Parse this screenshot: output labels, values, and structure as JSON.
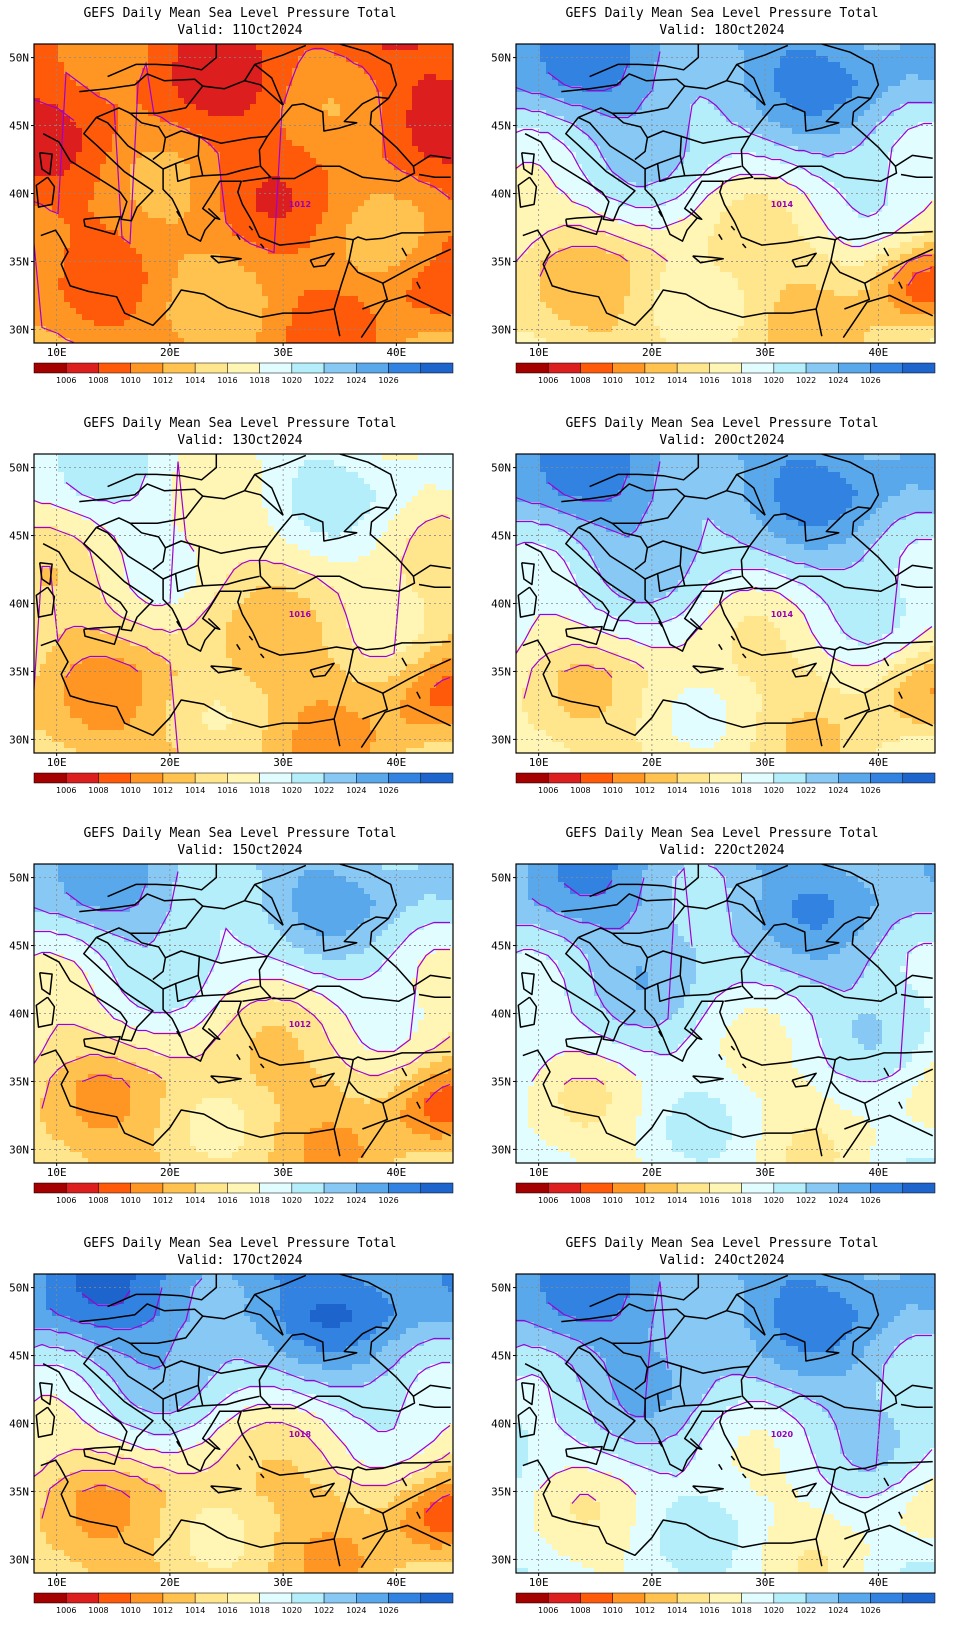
{
  "figure": {
    "title": "GEFS Daily Mean Sea Level Pressure Total",
    "valid_prefix": "Valid:",
    "colorbar_levels": [
      "1006",
      "1008",
      "1010",
      "1012",
      "1014",
      "1016",
      "1018",
      "1020",
      "1022",
      "1024",
      "1026"
    ],
    "colorbar_colors": [
      "#a50000",
      "#dc1e1e",
      "#ff5a0a",
      "#ff9623",
      "#ffc24f",
      "#ffe58c",
      "#fff5b4",
      "#e1fdff",
      "#b4eefa",
      "#87c8f5",
      "#5aa8ec",
      "#3282e1",
      "#1e64cd"
    ],
    "contour_color": "#a000d2",
    "coast_color": "#000000",
    "grid_color": "#8a8a8a",
    "lon_labels": [
      "10E",
      "20E",
      "30E",
      "40E"
    ],
    "lat_labels": [
      "50N",
      "45N",
      "40N",
      "35N",
      "30N"
    ],
    "panels": [
      {
        "name": "panel-11oct",
        "date": "11Oct2024",
        "label": "1012",
        "n_lvl": 2.0,
        "s_lvl": 3.1,
        "e_boost": 1.5
      },
      {
        "name": "panel-18oct",
        "date": "18Oct2024",
        "label": "1014",
        "n_lvl": 10.0,
        "s_lvl": 5.0,
        "e_boost": 3.0
      },
      {
        "name": "panel-13oct",
        "date": "13Oct2024",
        "label": "1016",
        "n_lvl": 7.0,
        "s_lvl": 4.2,
        "e_boost": 2.0
      },
      {
        "name": "panel-20oct",
        "date": "20Oct2024",
        "label": "1014",
        "n_lvl": 10.0,
        "s_lvl": 5.5,
        "e_boost": 2.0
      },
      {
        "name": "panel-15oct",
        "date": "15Oct2024",
        "label": "1012",
        "n_lvl": 9.0,
        "s_lvl": 4.5,
        "e_boost": 2.5
      },
      {
        "name": "panel-22oct",
        "date": "22Oct2024",
        "label": "",
        "n_lvl": 9.5,
        "s_lvl": 6.6,
        "e_boost": 0.5
      },
      {
        "name": "panel-17oct",
        "date": "17Oct2024",
        "label": "1018",
        "n_lvl": 10.5,
        "s_lvl": 4.5,
        "e_boost": 2.5
      },
      {
        "name": "panel-24oct",
        "date": "24Oct2024",
        "label": "1020",
        "n_lvl": 10.0,
        "s_lvl": 6.8,
        "e_boost": 0.8
      }
    ]
  }
}
